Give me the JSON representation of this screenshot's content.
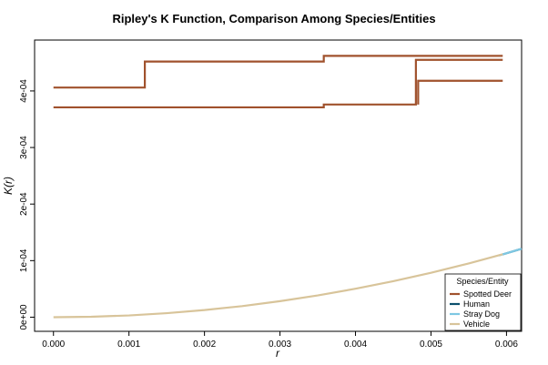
{
  "chart_data": {
    "type": "line",
    "title": "Ripley's K Function, Comparison Among Species/Entities",
    "xlabel": "r",
    "ylabel": "K(r)",
    "xlim": [
      -0.00025,
      0.0062
    ],
    "ylim": [
      -2.5e-05,
      0.00049
    ],
    "x_ticks": [
      {
        "value": 0.0,
        "label": "0.000"
      },
      {
        "value": 0.001,
        "label": "0.001"
      },
      {
        "value": 0.002,
        "label": "0.002"
      },
      {
        "value": 0.003,
        "label": "0.003"
      },
      {
        "value": 0.004,
        "label": "0.004"
      },
      {
        "value": 0.005,
        "label": "0.005"
      },
      {
        "value": 0.006,
        "label": "0.006"
      }
    ],
    "y_ticks": [
      {
        "value": 0.0,
        "label": "0e+00"
      },
      {
        "value": 0.0001,
        "label": "1e-04"
      },
      {
        "value": 0.0002,
        "label": "2e-04"
      },
      {
        "value": 0.0003,
        "label": "3e-04"
      },
      {
        "value": 0.0004,
        "label": "4e-04"
      }
    ],
    "legend": {
      "title": "Species/Entity",
      "position": "bottom-right",
      "entries": [
        {
          "name": "Spotted Deer",
          "color": "#A0522D"
        },
        {
          "name": "Human",
          "color": "#0B4F6C"
        },
        {
          "name": "Stray Dog",
          "color": "#7EC8E3"
        },
        {
          "name": "Vehicle",
          "color": "#D8C49A"
        }
      ]
    },
    "series": [
      {
        "name": "Spotted Deer",
        "color": "#A0522D",
        "step": true,
        "points": [
          [
            0.0,
            0.000406
          ],
          [
            0.00121,
            0.000406
          ],
          [
            0.00121,
            0.000452
          ],
          [
            0.00358,
            0.000452
          ],
          [
            0.00358,
            0.000462
          ],
          [
            0.00595,
            0.000462
          ]
        ]
      },
      {
        "name": "Spotted Deer",
        "color": "#A0522D",
        "step": true,
        "points": [
          [
            0.0,
            0.000371
          ],
          [
            0.00358,
            0.000371
          ],
          [
            0.00358,
            0.000376
          ],
          [
            0.0048,
            0.000376
          ],
          [
            0.0048,
            0.000455
          ],
          [
            0.00595,
            0.000455
          ]
        ]
      },
      {
        "name": "Spotted Deer",
        "color": "#A0522D",
        "step": true,
        "points": [
          [
            0.00483,
            0.000376
          ],
          [
            0.00483,
            0.000418
          ],
          [
            0.00595,
            0.000418
          ]
        ]
      },
      {
        "name": "Human",
        "color": "#0B4F6C",
        "step": false,
        "points": [
          [
            0.00595,
            0.000111
          ],
          [
            0.0062,
            0.000121
          ]
        ]
      },
      {
        "name": "Stray Dog",
        "color": "#7EC8E3",
        "step": false,
        "points": [
          [
            0.0059,
            0.000109
          ],
          [
            0.0062,
            0.000121
          ]
        ]
      },
      {
        "name": "Vehicle",
        "color": "#D8C49A",
        "step": false,
        "points": [
          [
            0.0,
            0.0
          ],
          [
            0.0005,
            8e-07
          ],
          [
            0.001,
            3.1e-06
          ],
          [
            0.0015,
            7.1e-06
          ],
          [
            0.002,
            1.26e-05
          ],
          [
            0.0025,
            1.96e-05
          ],
          [
            0.003,
            2.83e-05
          ],
          [
            0.0035,
            3.85e-05
          ],
          [
            0.004,
            5.03e-05
          ],
          [
            0.0045,
            6.36e-05
          ],
          [
            0.005,
            7.85e-05
          ],
          [
            0.0055,
            9.5e-05
          ],
          [
            0.00595,
            0.0001112
          ]
        ]
      }
    ]
  }
}
